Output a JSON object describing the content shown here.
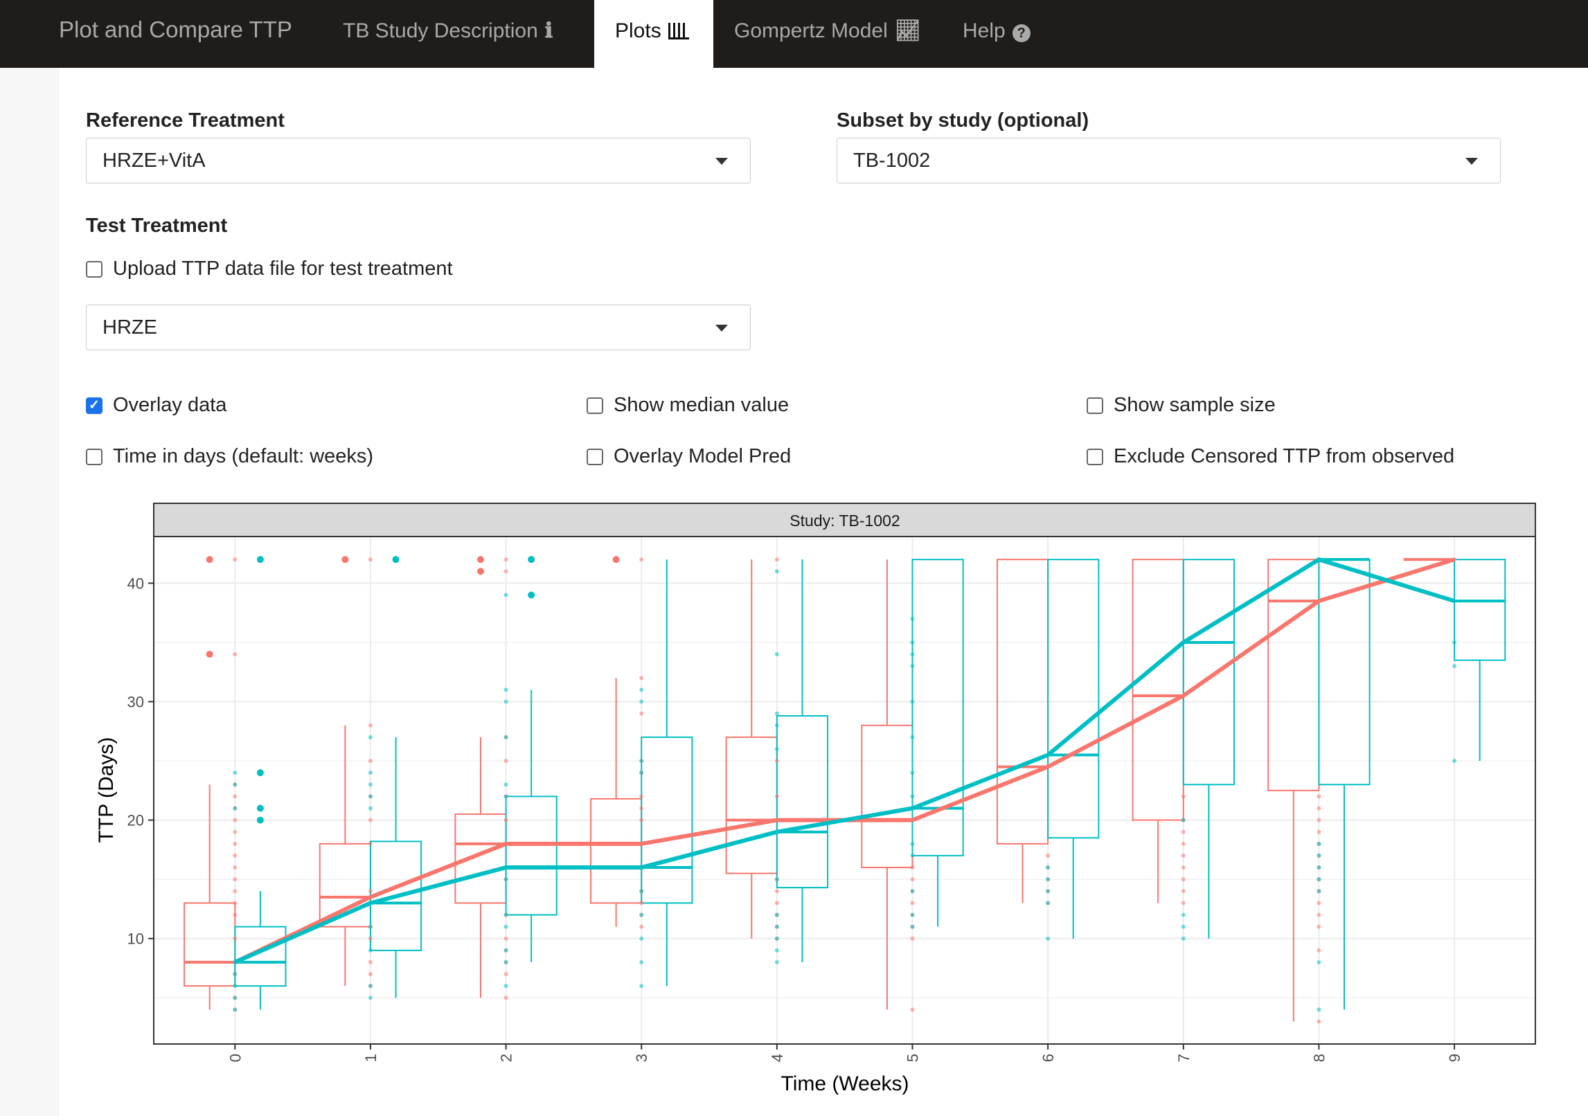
{
  "nav": {
    "brand": "Plot and Compare TTP",
    "tabs": [
      {
        "label": "TB Study Description",
        "icon": "info-icon",
        "glyph": "ℹ"
      },
      {
        "label": "Plots",
        "icon": "bar-chart-icon",
        "glyph": "📊"
      },
      {
        "label": "Gompertz Model",
        "icon": "line-chart-icon",
        "glyph": "📈"
      },
      {
        "label": "Help",
        "icon": "question-circle-icon",
        "glyph": "?"
      }
    ],
    "active": "Plots"
  },
  "form": {
    "reference_label": "Reference Treatment",
    "reference_value": "HRZE+VitA",
    "subset_label": "Subset by study (optional)",
    "subset_value": "TB-1002",
    "test_label": "Test Treatment",
    "upload_label": "Upload TTP data file for test treatment",
    "upload_checked": false,
    "test_value": "HRZE",
    "checkboxes": [
      {
        "label": "Overlay data",
        "checked": true
      },
      {
        "label": "Show median value",
        "checked": false
      },
      {
        "label": "Show sample size",
        "checked": false
      },
      {
        "label": "Time in days (default: weeks)",
        "checked": false
      },
      {
        "label": "Overlay Model Pred",
        "checked": false
      },
      {
        "label": "Exclude Censored TTP from observed",
        "checked": false
      }
    ]
  },
  "chart_data": {
    "type": "box",
    "title": "Study: TB-1002",
    "xlabel": "Time (Weeks)",
    "ylabel": "TTP (Days)",
    "categories": [
      "0",
      "1",
      "2",
      "3",
      "4",
      "5",
      "6",
      "7",
      "8",
      "9"
    ],
    "yticks": [
      10,
      20,
      30,
      40
    ],
    "ylim": [
      1,
      43
    ],
    "colors": {
      "reference": "#f8766d",
      "test": "#00bfc4"
    },
    "series": [
      {
        "name": "HRZE+VitA",
        "role": "reference",
        "medians": [
          8,
          13.5,
          18,
          18,
          20,
          20,
          24.5,
          30.5,
          38.5,
          42
        ],
        "q1": [
          6,
          11,
          13,
          13,
          15.5,
          16,
          18,
          20,
          22.5,
          42
        ],
        "q3": [
          13,
          18,
          20.5,
          21.8,
          27,
          28,
          42,
          42,
          42,
          42
        ],
        "lower": [
          4,
          6,
          5,
          11,
          10,
          4,
          13,
          13,
          3,
          42
        ],
        "upper": [
          23,
          28,
          27,
          32,
          42,
          42,
          42,
          42,
          42,
          42
        ],
        "outliers": [
          [
            34,
            42
          ],
          [
            42
          ],
          [
            41,
            42
          ],
          [
            42
          ],
          [],
          [],
          [],
          [],
          [],
          []
        ]
      },
      {
        "name": "HRZE",
        "role": "test",
        "medians": [
          8,
          13,
          16,
          16,
          19,
          21,
          25.5,
          35,
          42,
          38.5
        ],
        "q1": [
          6,
          9,
          12,
          13,
          14.3,
          17,
          18.5,
          23,
          23,
          33.5
        ],
        "q3": [
          11,
          18.2,
          22,
          27,
          28.8,
          42,
          42,
          42,
          42,
          42
        ],
        "lower": [
          4,
          5,
          8,
          6,
          8,
          11,
          10,
          10,
          4,
          25
        ],
        "upper": [
          14,
          27,
          31,
          42,
          42,
          42,
          42,
          42,
          42,
          42
        ],
        "outliers": [
          [
            20,
            21,
            24,
            42
          ],
          [
            42
          ],
          [
            39,
            42
          ],
          [],
          [],
          [],
          [],
          [],
          [],
          []
        ]
      }
    ],
    "overlay_points": {
      "reference": [
        [
          4,
          5,
          7,
          10,
          12,
          13,
          14,
          15,
          16,
          17,
          18,
          19,
          20,
          21,
          22,
          23,
          34,
          42
        ],
        [
          6,
          7,
          8,
          10,
          11,
          14,
          18,
          20,
          22,
          25,
          28,
          42
        ],
        [
          5,
          7,
          8,
          9,
          10,
          12,
          15,
          18,
          20,
          22,
          25,
          27,
          41,
          42
        ],
        [
          11,
          12,
          13,
          14,
          20,
          21,
          22,
          24,
          25,
          29,
          32,
          42
        ],
        [
          10,
          11,
          12,
          13,
          14,
          15,
          20,
          22,
          25,
          42
        ],
        [
          4,
          10,
          11,
          12,
          13,
          14,
          15,
          16
        ],
        [
          13,
          14,
          15,
          16,
          17
        ],
        [
          13,
          14,
          15,
          16,
          17,
          18,
          19,
          20,
          22
        ],
        [
          3,
          9,
          11,
          12,
          13,
          14,
          15,
          16,
          17,
          18,
          19,
          20,
          21,
          22
        ],
        [
          42
        ]
      ],
      "test": [
        [
          4,
          5,
          6,
          7,
          8,
          21,
          23,
          24
        ],
        [
          5,
          6,
          9,
          11,
          13,
          21,
          22,
          23,
          24,
          27
        ],
        [
          6,
          8,
          9,
          11,
          12,
          15,
          22,
          23,
          27,
          30,
          31,
          39
        ],
        [
          6,
          8,
          10,
          12,
          14,
          24,
          25,
          30,
          31
        ],
        [
          8,
          9,
          10,
          11,
          12,
          15,
          20,
          26,
          28,
          29,
          34,
          41
        ],
        [
          11,
          12,
          14,
          17,
          18,
          20,
          21,
          22,
          24,
          27,
          30,
          33,
          34,
          35,
          37
        ],
        [
          10,
          13,
          14,
          15,
          16
        ],
        [
          10,
          11,
          12,
          20
        ],
        [
          4,
          8,
          14,
          15,
          16,
          17,
          18
        ],
        [
          25,
          33,
          35
        ]
      ]
    }
  }
}
